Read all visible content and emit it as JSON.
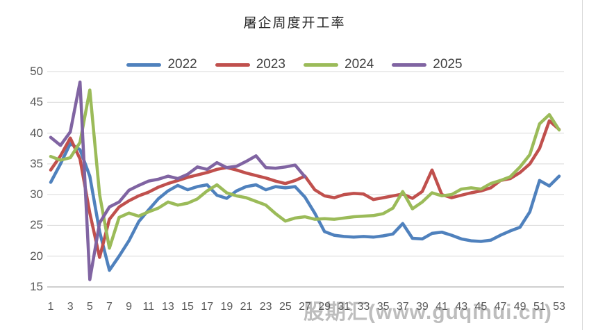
{
  "title": "屠企周度开工率",
  "watermark": "股期汇(www.guqihui.cn)",
  "chart_data": {
    "type": "line",
    "title": "屠企周度开工率",
    "xlabel": "",
    "ylabel": "",
    "ylim": [
      15,
      50
    ],
    "y_ticks": [
      50,
      45,
      40,
      35,
      30,
      25,
      20,
      15
    ],
    "x_ticks": [
      1,
      3,
      5,
      7,
      9,
      11,
      13,
      15,
      17,
      19,
      21,
      23,
      25,
      27,
      29,
      31,
      33,
      35,
      37,
      39,
      41,
      43,
      45,
      47,
      49,
      51,
      53
    ],
    "x_range": [
      1,
      53
    ],
    "grid": "horizontal",
    "legend_position": "top",
    "series": [
      {
        "name": "2022",
        "color": "#4F81BD",
        "values": [
          32.0,
          35.0,
          38.3,
          37.3,
          33.0,
          24.0,
          17.7,
          20.0,
          22.5,
          25.6,
          27.5,
          29.3,
          30.6,
          31.5,
          30.8,
          31.3,
          31.6,
          29.9,
          29.4,
          30.6,
          31.3,
          31.6,
          30.8,
          31.3,
          31.1,
          31.3,
          29.6,
          27.0,
          24.0,
          23.4,
          23.2,
          23.1,
          23.2,
          23.1,
          23.3,
          23.6,
          25.3,
          22.9,
          22.8,
          23.7,
          23.9,
          23.4,
          22.8,
          22.5,
          22.4,
          22.6,
          23.4,
          24.1,
          24.7,
          27.2,
          32.3,
          31.4,
          33.0
        ]
      },
      {
        "name": "2023",
        "color": "#C0504D",
        "values": [
          34.0,
          36.3,
          39.2,
          35.8,
          27.0,
          19.8,
          26.0,
          28.0,
          29.0,
          29.8,
          30.4,
          31.2,
          31.8,
          32.3,
          32.8,
          33.2,
          33.6,
          34.1,
          34.4,
          34.0,
          33.5,
          33.1,
          32.7,
          32.2,
          31.8,
          32.3,
          33.0,
          30.8,
          29.8,
          29.5,
          30.0,
          30.2,
          30.1,
          29.2,
          29.5,
          29.8,
          30.1,
          29.4,
          30.5,
          34.0,
          30.0,
          29.5,
          29.9,
          30.3,
          30.6,
          31.1,
          32.3,
          32.6,
          33.6,
          35.0,
          37.5,
          42.0,
          40.6
        ]
      },
      {
        "name": "2024",
        "color": "#9BBB59",
        "values": [
          36.2,
          35.6,
          36.0,
          38.5,
          47.0,
          30.0,
          21.3,
          26.3,
          27.0,
          26.5,
          27.2,
          27.8,
          28.8,
          28.3,
          28.6,
          29.3,
          30.6,
          31.6,
          30.3,
          29.8,
          29.5,
          28.9,
          28.3,
          26.9,
          25.7,
          26.2,
          26.4,
          26.0,
          26.1,
          26.0,
          26.2,
          26.4,
          26.5,
          26.6,
          26.9,
          27.8,
          30.5,
          27.7,
          28.8,
          30.3,
          29.8,
          30.0,
          30.9,
          31.1,
          30.9,
          31.8,
          32.3,
          32.9,
          34.5,
          36.5,
          41.5,
          43.0,
          40.5
        ]
      },
      {
        "name": "2025",
        "color": "#8064A2",
        "values": [
          39.3,
          38.0,
          40.2,
          48.3,
          16.2,
          25.4,
          28.0,
          28.8,
          30.7,
          31.5,
          32.2,
          32.5,
          33.0,
          32.6,
          33.3,
          34.5,
          34.1,
          35.2,
          34.4,
          34.6,
          35.4,
          36.3,
          34.4,
          34.3,
          34.5,
          34.8,
          32.9,
          null,
          null,
          null,
          null,
          null,
          null,
          null,
          null,
          null,
          null,
          null,
          null,
          null,
          null,
          null,
          null,
          null,
          null,
          null,
          null,
          null,
          null,
          null,
          null,
          null,
          null
        ]
      }
    ]
  },
  "layout_colors": {
    "gridline": "#d9d9d9",
    "axis_line": "#bfbfbf",
    "tick_text": "#595959"
  }
}
